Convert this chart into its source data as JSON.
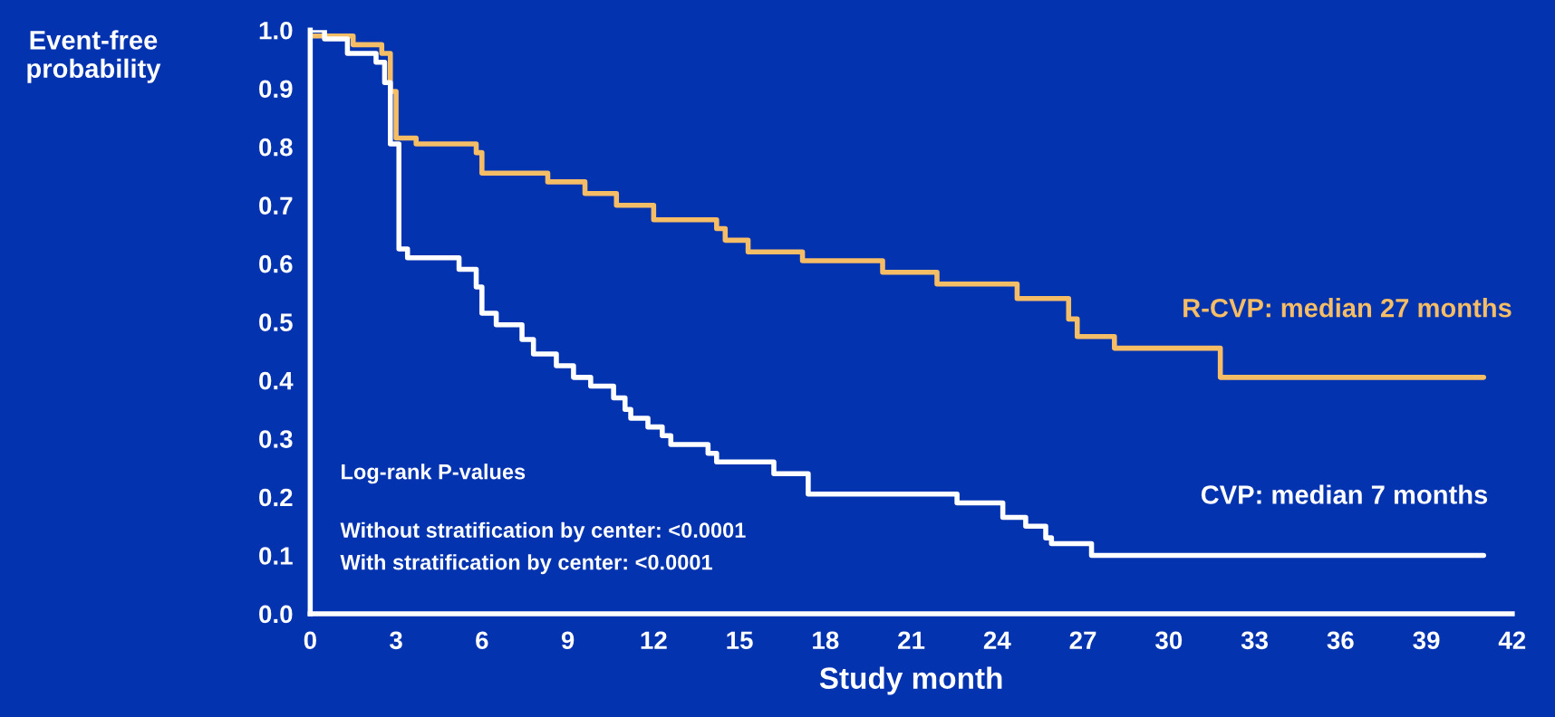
{
  "chart_data": {
    "type": "step",
    "xlabel": "Study month",
    "ylabel": "Event-free\nprobability",
    "xlim": [
      0,
      42
    ],
    "ylim": [
      0,
      1.0
    ],
    "xticks": [
      0,
      3,
      6,
      9,
      12,
      15,
      18,
      21,
      24,
      27,
      30,
      33,
      36,
      39,
      42
    ],
    "yticks": [
      {
        "value": 0,
        "label": "0.0"
      },
      {
        "value": 0.1,
        "label": "0.1"
      },
      {
        "value": 0.2,
        "label": "0.2"
      },
      {
        "value": 0.3,
        "label": "0.3"
      },
      {
        "value": 0.4,
        "label": "0.4"
      },
      {
        "value": 0.5,
        "label": "0.5"
      },
      {
        "value": 0.6,
        "label": "0.6"
      },
      {
        "value": 0.7,
        "label": "0.7"
      },
      {
        "value": 0.8,
        "label": "0.8"
      },
      {
        "value": 0.9,
        "label": "0.9"
      },
      {
        "value": 1.0,
        "label": "1.0"
      }
    ],
    "grid": false,
    "legend": false,
    "series": [
      {
        "name": "R-CVP: median 27 months",
        "color": "#f5bd66",
        "x": [
          0,
          1.5,
          2.5,
          2.8,
          3.0,
          3.7,
          5.8,
          6.0,
          8.3,
          9.6,
          10.7,
          12.0,
          14.2,
          14.5,
          15.3,
          17.2,
          20.0,
          21.9,
          24.7,
          26.5,
          26.8,
          28.1,
          31.8,
          41
        ],
        "values": [
          0.99,
          0.975,
          0.96,
          0.895,
          0.815,
          0.805,
          0.79,
          0.755,
          0.74,
          0.72,
          0.7,
          0.675,
          0.66,
          0.64,
          0.62,
          0.605,
          0.585,
          0.565,
          0.54,
          0.505,
          0.475,
          0.455,
          0.405,
          0.405
        ]
      },
      {
        "name": "CVP: median 7 months",
        "color": "#ffffff",
        "x": [
          0,
          0.5,
          1.3,
          2.3,
          2.6,
          2.8,
          3.1,
          3.4,
          5.2,
          5.8,
          6.0,
          6.5,
          7.4,
          7.8,
          8.6,
          9.2,
          9.8,
          10.6,
          11.0,
          11.2,
          11.8,
          12.3,
          12.6,
          13.9,
          14.2,
          16.2,
          17.4,
          22.6,
          24.2,
          25.0,
          25.7,
          25.9,
          27.3,
          41
        ],
        "values": [
          1.0,
          0.985,
          0.96,
          0.945,
          0.91,
          0.805,
          0.625,
          0.61,
          0.59,
          0.56,
          0.515,
          0.495,
          0.47,
          0.445,
          0.425,
          0.405,
          0.39,
          0.37,
          0.35,
          0.335,
          0.32,
          0.305,
          0.29,
          0.275,
          0.26,
          0.24,
          0.205,
          0.19,
          0.165,
          0.15,
          0.13,
          0.12,
          0.1,
          0.1
        ]
      }
    ],
    "annotations": [
      "Log-rank P-values",
      "Without stratification by center: <0.0001",
      "With stratification by center: <0.0001"
    ]
  }
}
